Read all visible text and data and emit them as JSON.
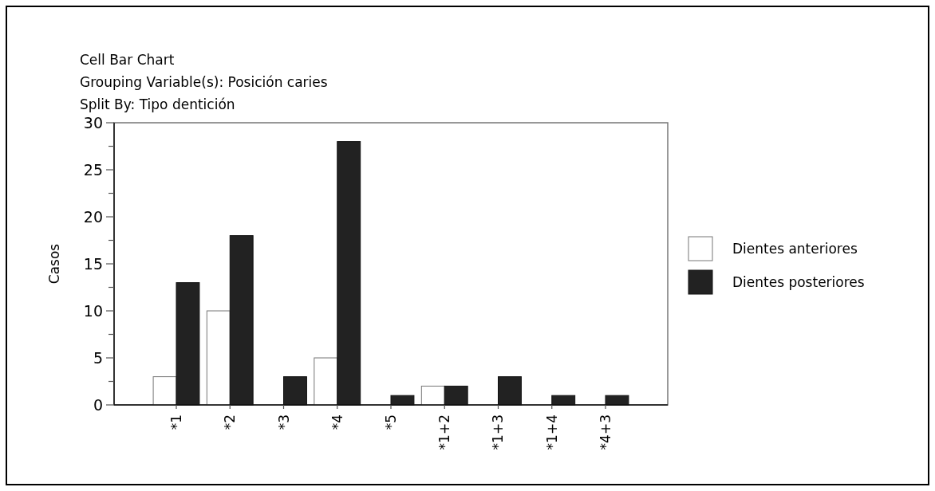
{
  "chart_data": {
    "type": "bar",
    "title": "Cell Bar Chart",
    "subtitle": "Grouping Variable(s): Posición caries",
    "annotations": [
      "Split By: Tipo dentición"
    ],
    "ylabel": "Casos",
    "categories": [
      "*1",
      "*2",
      "*3",
      "*4",
      "*5",
      "*1+2",
      "*1+3",
      "*1+4",
      "*4+3"
    ],
    "series": [
      {
        "name": "Dientes anteriores",
        "color": "#ffffff",
        "values": [
          3,
          10,
          0,
          5,
          0,
          2,
          0,
          0,
          0
        ]
      },
      {
        "name": "Dientes posteriores",
        "color": "#222222",
        "values": [
          13,
          18,
          3,
          28,
          1,
          2,
          3,
          1,
          1
        ]
      }
    ],
    "ylim": [
      0,
      30
    ],
    "yticks": [
      0,
      {
        "value": 2.5,
        "label": null
      },
      5,
      {
        "value": 7.5,
        "label": null
      },
      10,
      {
        "value": 12.5,
        "label": null
      },
      15,
      {
        "value": 17.5,
        "label": null
      },
      20,
      {
        "value": 22.5,
        "label": null
      },
      25,
      {
        "value": 27.5,
        "label": null
      },
      30
    ],
    "grid": false,
    "legend": "right"
  }
}
